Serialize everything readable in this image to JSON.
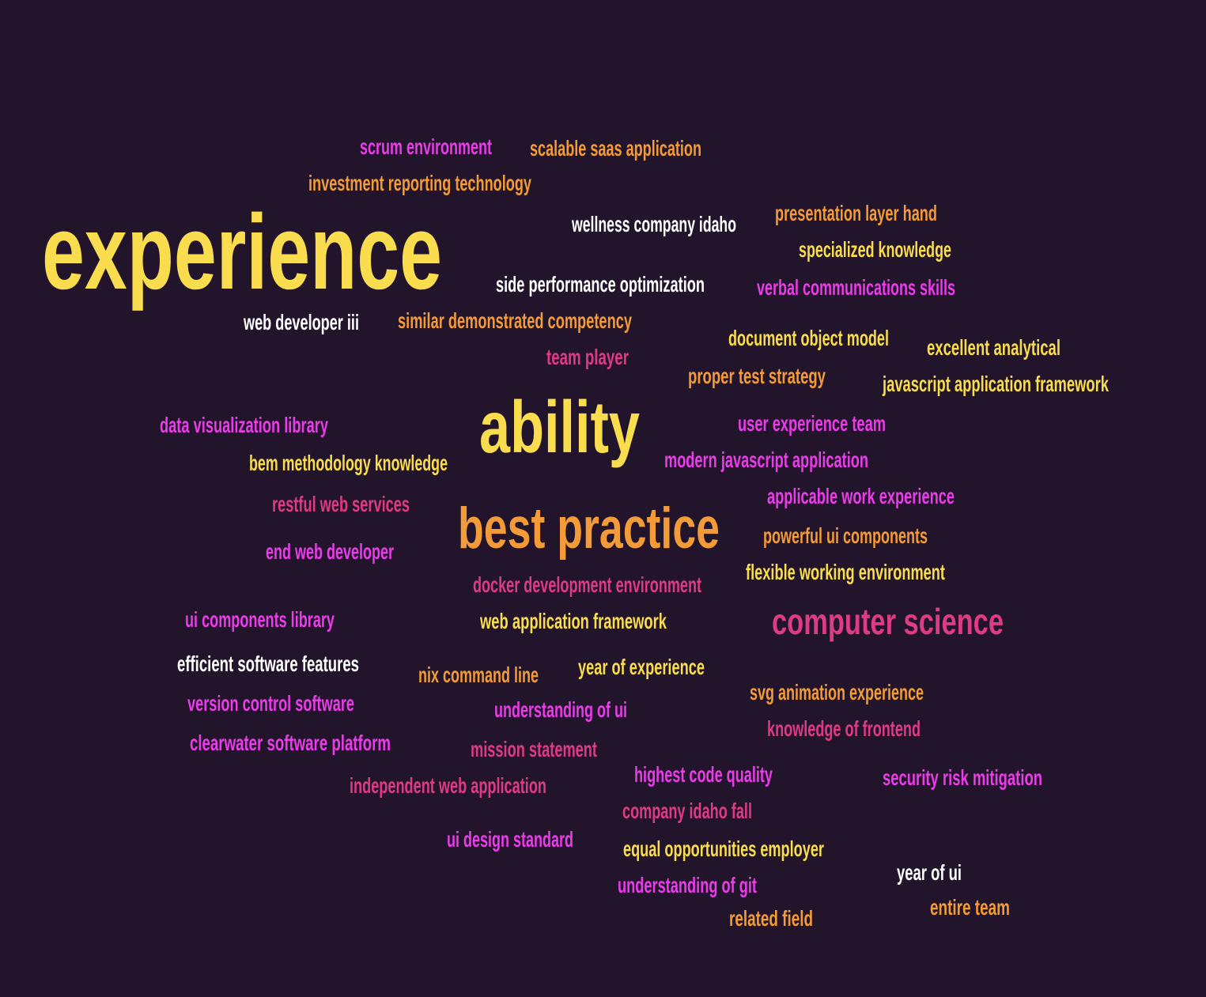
{
  "palette": {
    "background": "#22152b",
    "yellow": "#fadd4f",
    "orange": "#f39b38",
    "magenta": "#e93de8",
    "pink": "#dd3b87",
    "white": "#ffffff"
  },
  "words": [
    {
      "text": "experience",
      "color": "yellow"
    },
    {
      "text": "ability",
      "color": "yellow"
    },
    {
      "text": "best practice",
      "color": "orange"
    },
    {
      "text": "computer science",
      "color": "pink"
    },
    {
      "text": "scrum environment",
      "color": "magenta"
    },
    {
      "text": "scalable saas application",
      "color": "orange"
    },
    {
      "text": "investment reporting technology",
      "color": "orange"
    },
    {
      "text": "wellness company idaho",
      "color": "white"
    },
    {
      "text": "presentation layer hand",
      "color": "orange"
    },
    {
      "text": "specialized knowledge",
      "color": "yellow"
    },
    {
      "text": "side performance optimization",
      "color": "white"
    },
    {
      "text": "verbal communications skills",
      "color": "magenta"
    },
    {
      "text": "web developer iii",
      "color": "white"
    },
    {
      "text": "similar demonstrated competency",
      "color": "orange"
    },
    {
      "text": "document object model",
      "color": "yellow"
    },
    {
      "text": "excellent analytical",
      "color": "yellow"
    },
    {
      "text": "team player",
      "color": "pink"
    },
    {
      "text": "proper test strategy",
      "color": "orange"
    },
    {
      "text": "javascript application framework",
      "color": "yellow"
    },
    {
      "text": "data visualization library",
      "color": "magenta"
    },
    {
      "text": "user experience team",
      "color": "magenta"
    },
    {
      "text": "bem methodology knowledge",
      "color": "yellow"
    },
    {
      "text": "modern javascript application",
      "color": "magenta"
    },
    {
      "text": "applicable work experience",
      "color": "magenta"
    },
    {
      "text": "restful web services",
      "color": "pink"
    },
    {
      "text": "powerful ui components",
      "color": "orange"
    },
    {
      "text": "end web developer",
      "color": "magenta"
    },
    {
      "text": "flexible working environment",
      "color": "yellow"
    },
    {
      "text": "docker development environment",
      "color": "pink"
    },
    {
      "text": "ui components library",
      "color": "magenta"
    },
    {
      "text": "web application framework",
      "color": "yellow"
    },
    {
      "text": "efficient software features",
      "color": "white"
    },
    {
      "text": "nix command line",
      "color": "orange"
    },
    {
      "text": "year of experience",
      "color": "yellow"
    },
    {
      "text": "svg animation experience",
      "color": "orange"
    },
    {
      "text": "version control software",
      "color": "magenta"
    },
    {
      "text": "understanding of ui",
      "color": "magenta"
    },
    {
      "text": "knowledge of frontend",
      "color": "pink"
    },
    {
      "text": "clearwater software platform",
      "color": "magenta"
    },
    {
      "text": "mission statement",
      "color": "pink"
    },
    {
      "text": "highest code quality",
      "color": "magenta"
    },
    {
      "text": "security risk mitigation",
      "color": "magenta"
    },
    {
      "text": "independent web application",
      "color": "pink"
    },
    {
      "text": "company idaho fall",
      "color": "pink"
    },
    {
      "text": "ui design standard",
      "color": "magenta"
    },
    {
      "text": "equal opportunities employer",
      "color": "yellow"
    },
    {
      "text": "year of ui",
      "color": "white"
    },
    {
      "text": "understanding of git",
      "color": "magenta"
    },
    {
      "text": "entire team",
      "color": "orange"
    },
    {
      "text": "related field",
      "color": "orange"
    }
  ]
}
